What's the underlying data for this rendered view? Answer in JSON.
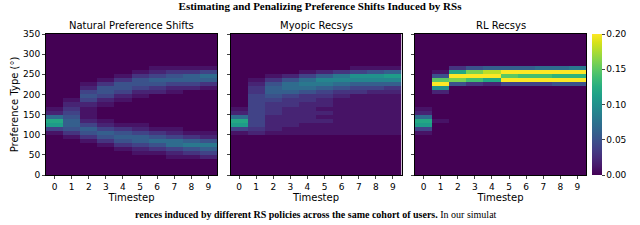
{
  "chart_data": {
    "type": "heatmap",
    "title": "Estimating and Penalizing Preference Shifts Induced by RSs",
    "caption": [
      "rences induced by different RS policies across the same cohort of users.",
      "In our simulat"
    ],
    "xlabel": "Timestep",
    "ylabel": "Preference Type (°)",
    "x": [
      0,
      1,
      2,
      3,
      4,
      5,
      6,
      7,
      8,
      9
    ],
    "y": [
      5,
      15,
      25,
      35,
      45,
      55,
      65,
      75,
      85,
      95,
      105,
      115,
      125,
      135,
      145,
      155,
      165,
      175,
      185,
      195,
      205,
      215,
      225,
      235,
      245,
      255,
      265,
      275,
      285,
      295,
      305,
      315,
      325,
      335,
      345
    ],
    "xlim": [
      -0.5,
      9.5
    ],
    "xticks": [
      0,
      1,
      2,
      3,
      4,
      5,
      6,
      7,
      8,
      9
    ],
    "ylim": [
      0,
      350
    ],
    "yticks": [
      0,
      50,
      100,
      150,
      200,
      250,
      300,
      350
    ],
    "color": "viridis",
    "colorbar": {
      "range": [
        0,
        0.2
      ],
      "ticks": [
        {
          "value": 0,
          "label": "0.00"
        },
        {
          "value": 0.05,
          "label": "0.05"
        },
        {
          "value": 0.1,
          "label": "0.10"
        },
        {
          "value": 0.15,
          "label": "0.15"
        },
        {
          "value": 0.2,
          "label": "0.20"
        }
      ]
    },
    "panels": [
      {
        "title": "Natural Preference Shifts",
        "cells_by_timestep": [
          [
            0,
            0,
            0,
            0,
            0,
            0,
            0,
            0,
            0,
            0,
            0.01,
            0.04,
            0.11,
            0.12,
            0.07,
            0.02,
            0.01,
            0,
            0,
            0,
            0,
            0,
            0,
            0,
            0,
            0,
            0,
            0,
            0,
            0,
            0,
            0,
            0,
            0,
            0
          ],
          [
            0,
            0,
            0,
            0,
            0,
            0,
            0,
            0,
            0,
            0.01,
            0.03,
            0.05,
            0.06,
            0.06,
            0.05,
            0.04,
            0.03,
            0.02,
            0.01,
            0,
            0,
            0,
            0,
            0,
            0,
            0,
            0,
            0,
            0,
            0,
            0,
            0,
            0,
            0,
            0
          ],
          [
            0,
            0,
            0,
            0,
            0,
            0,
            0,
            0,
            0.01,
            0.03,
            0.05,
            0.06,
            0.04,
            0.02,
            0.01,
            0.01,
            0.01,
            0.02,
            0.04,
            0.05,
            0.04,
            0.02,
            0.01,
            0,
            0,
            0,
            0,
            0,
            0,
            0,
            0,
            0,
            0,
            0,
            0
          ],
          [
            0,
            0,
            0,
            0,
            0,
            0,
            0,
            0.01,
            0.03,
            0.05,
            0.06,
            0.04,
            0.02,
            0.01,
            0,
            0,
            0,
            0.01,
            0.02,
            0.04,
            0.05,
            0.05,
            0.03,
            0.01,
            0,
            0,
            0,
            0,
            0,
            0,
            0,
            0,
            0,
            0,
            0
          ],
          [
            0,
            0,
            0,
            0,
            0,
            0,
            0.01,
            0.03,
            0.05,
            0.06,
            0.05,
            0.03,
            0.01,
            0,
            0,
            0,
            0,
            0,
            0.01,
            0.02,
            0.04,
            0.05,
            0.05,
            0.03,
            0.01,
            0,
            0,
            0,
            0,
            0,
            0,
            0,
            0,
            0,
            0
          ],
          [
            0,
            0,
            0,
            0,
            0,
            0.01,
            0.02,
            0.04,
            0.06,
            0.06,
            0.04,
            0.02,
            0.01,
            0,
            0,
            0,
            0,
            0,
            0,
            0.01,
            0.02,
            0.04,
            0.05,
            0.05,
            0.03,
            0.01,
            0,
            0,
            0,
            0,
            0,
            0,
            0,
            0,
            0
          ],
          [
            0,
            0,
            0,
            0,
            0,
            0.01,
            0.03,
            0.05,
            0.07,
            0.05,
            0.03,
            0.01,
            0,
            0,
            0,
            0,
            0,
            0,
            0,
            0,
            0.02,
            0.03,
            0.05,
            0.06,
            0.04,
            0.02,
            0.01,
            0,
            0,
            0,
            0,
            0,
            0,
            0,
            0
          ],
          [
            0,
            0,
            0,
            0,
            0.01,
            0.02,
            0.04,
            0.07,
            0.07,
            0.04,
            0.02,
            0.01,
            0,
            0,
            0,
            0,
            0,
            0,
            0,
            0,
            0.01,
            0.02,
            0.04,
            0.06,
            0.05,
            0.03,
            0.01,
            0,
            0,
            0,
            0,
            0,
            0,
            0,
            0
          ],
          [
            0,
            0,
            0,
            0,
            0.01,
            0.03,
            0.05,
            0.08,
            0.06,
            0.03,
            0.01,
            0,
            0,
            0,
            0,
            0,
            0,
            0,
            0,
            0,
            0,
            0.02,
            0.04,
            0.06,
            0.06,
            0.03,
            0.01,
            0,
            0,
            0,
            0,
            0,
            0,
            0,
            0
          ],
          [
            0,
            0,
            0,
            0,
            0.02,
            0.04,
            0.06,
            0.08,
            0.05,
            0.02,
            0.01,
            0,
            0,
            0,
            0,
            0,
            0,
            0,
            0,
            0,
            0,
            0.01,
            0.03,
            0.06,
            0.07,
            0.04,
            0.01,
            0,
            0,
            0,
            0,
            0,
            0,
            0,
            0
          ]
        ]
      },
      {
        "title": "Myopic Recsys",
        "cells_by_timestep": [
          [
            0,
            0,
            0,
            0,
            0,
            0,
            0,
            0,
            0,
            0,
            0.01,
            0.04,
            0.11,
            0.12,
            0.07,
            0.02,
            0.01,
            0,
            0,
            0,
            0,
            0,
            0,
            0,
            0,
            0,
            0,
            0,
            0,
            0,
            0,
            0,
            0,
            0,
            0
          ],
          [
            0,
            0,
            0,
            0,
            0,
            0,
            0,
            0,
            0,
            0,
            0.02,
            0.03,
            0.04,
            0.04,
            0.04,
            0.04,
            0.04,
            0.04,
            0.04,
            0.04,
            0.03,
            0.03,
            0.02,
            0.01,
            0,
            0,
            0,
            0,
            0,
            0,
            0,
            0,
            0,
            0,
            0
          ],
          [
            0,
            0,
            0,
            0,
            0,
            0,
            0,
            0,
            0,
            0,
            0.01,
            0.02,
            0.02,
            0.02,
            0.02,
            0.03,
            0.03,
            0.03,
            0.04,
            0.05,
            0.06,
            0.06,
            0.05,
            0.03,
            0.01,
            0,
            0,
            0,
            0,
            0,
            0,
            0,
            0,
            0,
            0
          ],
          [
            0,
            0,
            0,
            0,
            0,
            0,
            0,
            0,
            0,
            0,
            0.01,
            0.01,
            0.02,
            0.02,
            0.02,
            0.02,
            0.02,
            0.03,
            0.03,
            0.04,
            0.06,
            0.07,
            0.07,
            0.05,
            0.02,
            0,
            0,
            0,
            0,
            0,
            0,
            0,
            0,
            0,
            0
          ],
          [
            0,
            0,
            0,
            0,
            0,
            0,
            0,
            0,
            0,
            0,
            0.01,
            0.01,
            0.01,
            0.02,
            0.02,
            0.02,
            0.02,
            0.02,
            0.03,
            0.03,
            0.05,
            0.07,
            0.08,
            0.07,
            0.04,
            0.01,
            0,
            0,
            0,
            0,
            0,
            0,
            0,
            0,
            0
          ],
          [
            0,
            0,
            0,
            0,
            0,
            0,
            0,
            0,
            0,
            0,
            0.01,
            0.01,
            0.01,
            0.02,
            0.01,
            0.02,
            0.01,
            0.02,
            0.02,
            0.03,
            0.04,
            0.06,
            0.08,
            0.09,
            0.06,
            0.02,
            0,
            0,
            0,
            0,
            0,
            0,
            0,
            0,
            0
          ],
          [
            0,
            0,
            0,
            0,
            0,
            0,
            0,
            0,
            0,
            0,
            0.01,
            0.01,
            0.01,
            0.01,
            0.01,
            0.01,
            0.01,
            0.01,
            0.01,
            0.02,
            0.03,
            0.05,
            0.07,
            0.09,
            0.08,
            0.03,
            0,
            0,
            0,
            0,
            0,
            0,
            0,
            0,
            0
          ],
          [
            0,
            0,
            0,
            0,
            0,
            0,
            0,
            0,
            0,
            0,
            0.01,
            0.01,
            0.01,
            0.01,
            0.01,
            0.01,
            0.01,
            0.01,
            0.01,
            0.01,
            0.03,
            0.04,
            0.06,
            0.09,
            0.1,
            0.04,
            0.01,
            0,
            0,
            0,
            0,
            0,
            0,
            0,
            0
          ],
          [
            0,
            0,
            0,
            0,
            0,
            0,
            0,
            0,
            0,
            0,
            0.01,
            0.01,
            0.01,
            0.01,
            0.01,
            0.01,
            0.01,
            0.01,
            0.01,
            0.01,
            0.02,
            0.04,
            0.06,
            0.09,
            0.1,
            0.05,
            0.01,
            0,
            0,
            0,
            0,
            0,
            0,
            0,
            0
          ],
          [
            0,
            0,
            0,
            0,
            0,
            0,
            0,
            0,
            0,
            0,
            0.01,
            0.01,
            0.01,
            0.01,
            0.01,
            0.01,
            0.01,
            0.01,
            0.01,
            0.01,
            0.02,
            0.03,
            0.06,
            0.09,
            0.11,
            0.06,
            0.01,
            0,
            0,
            0,
            0,
            0,
            0,
            0,
            0
          ]
        ]
      },
      {
        "title": "RL Recsys",
        "cells_by_timestep": [
          [
            0,
            0,
            0,
            0,
            0,
            0,
            0,
            0,
            0,
            0,
            0.01,
            0.04,
            0.11,
            0.12,
            0.07,
            0.02,
            0.01,
            0,
            0,
            0,
            0,
            0,
            0,
            0,
            0,
            0,
            0,
            0,
            0,
            0,
            0,
            0,
            0,
            0,
            0
          ],
          [
            0,
            0,
            0,
            0,
            0,
            0,
            0,
            0,
            0,
            0,
            0,
            0,
            0,
            0.01,
            0,
            0,
            0,
            0,
            0,
            0,
            0.02,
            0.1,
            0.2,
            0.15,
            0.05,
            0.01,
            0,
            0,
            0,
            0,
            0,
            0,
            0,
            0,
            0
          ],
          [
            0,
            0,
            0,
            0,
            0,
            0,
            0,
            0,
            0,
            0,
            0,
            0,
            0,
            0,
            0,
            0,
            0,
            0,
            0,
            0,
            0,
            0,
            0.05,
            0.16,
            0.2,
            0.12,
            0.03,
            0,
            0,
            0,
            0,
            0,
            0,
            0,
            0
          ],
          [
            0,
            0,
            0,
            0,
            0,
            0,
            0,
            0,
            0,
            0,
            0,
            0,
            0,
            0,
            0,
            0,
            0,
            0,
            0,
            0,
            0,
            0,
            0.03,
            0.14,
            0.2,
            0.16,
            0.05,
            0,
            0,
            0,
            0,
            0,
            0,
            0,
            0
          ],
          [
            0,
            0,
            0,
            0,
            0,
            0,
            0,
            0,
            0,
            0,
            0,
            0,
            0,
            0,
            0,
            0,
            0,
            0,
            0,
            0,
            0,
            0,
            0.02,
            0.12,
            0.2,
            0.18,
            0.06,
            0,
            0,
            0,
            0,
            0,
            0,
            0,
            0
          ],
          [
            0,
            0,
            0,
            0,
            0,
            0,
            0,
            0,
            0,
            0,
            0,
            0,
            0,
            0,
            0,
            0,
            0,
            0,
            0,
            0,
            0,
            0,
            0.04,
            0.2,
            0.15,
            0.2,
            0.06,
            0,
            0,
            0,
            0,
            0,
            0,
            0,
            0
          ],
          [
            0,
            0,
            0,
            0,
            0,
            0,
            0,
            0,
            0,
            0,
            0,
            0,
            0,
            0,
            0,
            0,
            0,
            0,
            0,
            0,
            0,
            0,
            0.04,
            0.2,
            0.14,
            0.2,
            0.06,
            0,
            0,
            0,
            0,
            0,
            0,
            0,
            0
          ],
          [
            0,
            0,
            0,
            0,
            0,
            0,
            0,
            0,
            0,
            0,
            0,
            0,
            0,
            0,
            0,
            0,
            0,
            0,
            0,
            0,
            0,
            0,
            0.04,
            0.2,
            0.14,
            0.2,
            0.07,
            0,
            0,
            0,
            0,
            0,
            0,
            0,
            0
          ],
          [
            0,
            0,
            0,
            0,
            0,
            0,
            0,
            0,
            0,
            0,
            0,
            0,
            0,
            0,
            0,
            0,
            0,
            0,
            0,
            0,
            0,
            0,
            0.05,
            0.2,
            0.13,
            0.2,
            0.07,
            0,
            0,
            0,
            0,
            0,
            0,
            0,
            0
          ],
          [
            0,
            0,
            0,
            0,
            0,
            0,
            0,
            0,
            0,
            0,
            0,
            0,
            0,
            0,
            0,
            0,
            0,
            0,
            0,
            0,
            0,
            0,
            0.05,
            0.2,
            0.13,
            0.2,
            0.08,
            0,
            0,
            0,
            0,
            0,
            0,
            0,
            0
          ]
        ]
      }
    ]
  }
}
